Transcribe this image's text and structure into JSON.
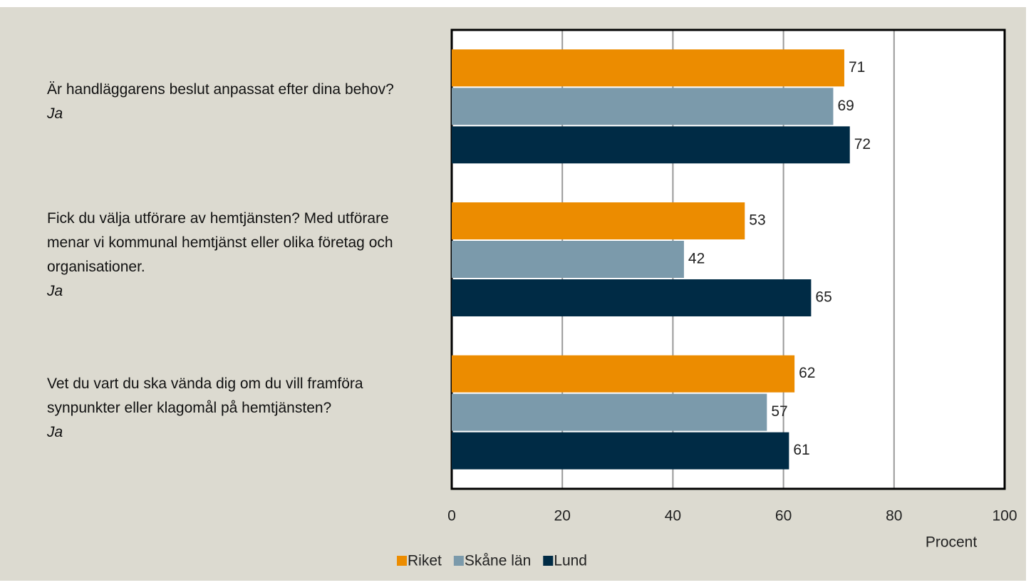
{
  "chart_data": {
    "type": "barh",
    "categories": [
      "Är handläggarens beslut anpassat efter dina behov?",
      "Fick du välja utförare av hemtjänsten? Med utförare menar vi kommunal hemtjänst eller olika företag och organisationer.",
      "Vet du vart du ska vända dig om du vill framföra synpunkter eller klagomål på hemtjänsten?"
    ],
    "category_notes": [
      "Ja",
      "Ja",
      "Ja"
    ],
    "series": [
      {
        "name": "Riket",
        "color": "#ec8c00",
        "values": [
          71,
          53,
          62
        ]
      },
      {
        "name": "Skåne län",
        "color": "#7b9aab",
        "values": [
          69,
          42,
          57
        ]
      },
      {
        "name": "Lund",
        "color": "#002b45",
        "values": [
          72,
          65,
          61
        ]
      }
    ],
    "xlabel": "Procent",
    "xlim": [
      0,
      100
    ],
    "xticks": [
      0,
      20,
      40,
      60,
      80,
      100
    ],
    "grid": true
  }
}
